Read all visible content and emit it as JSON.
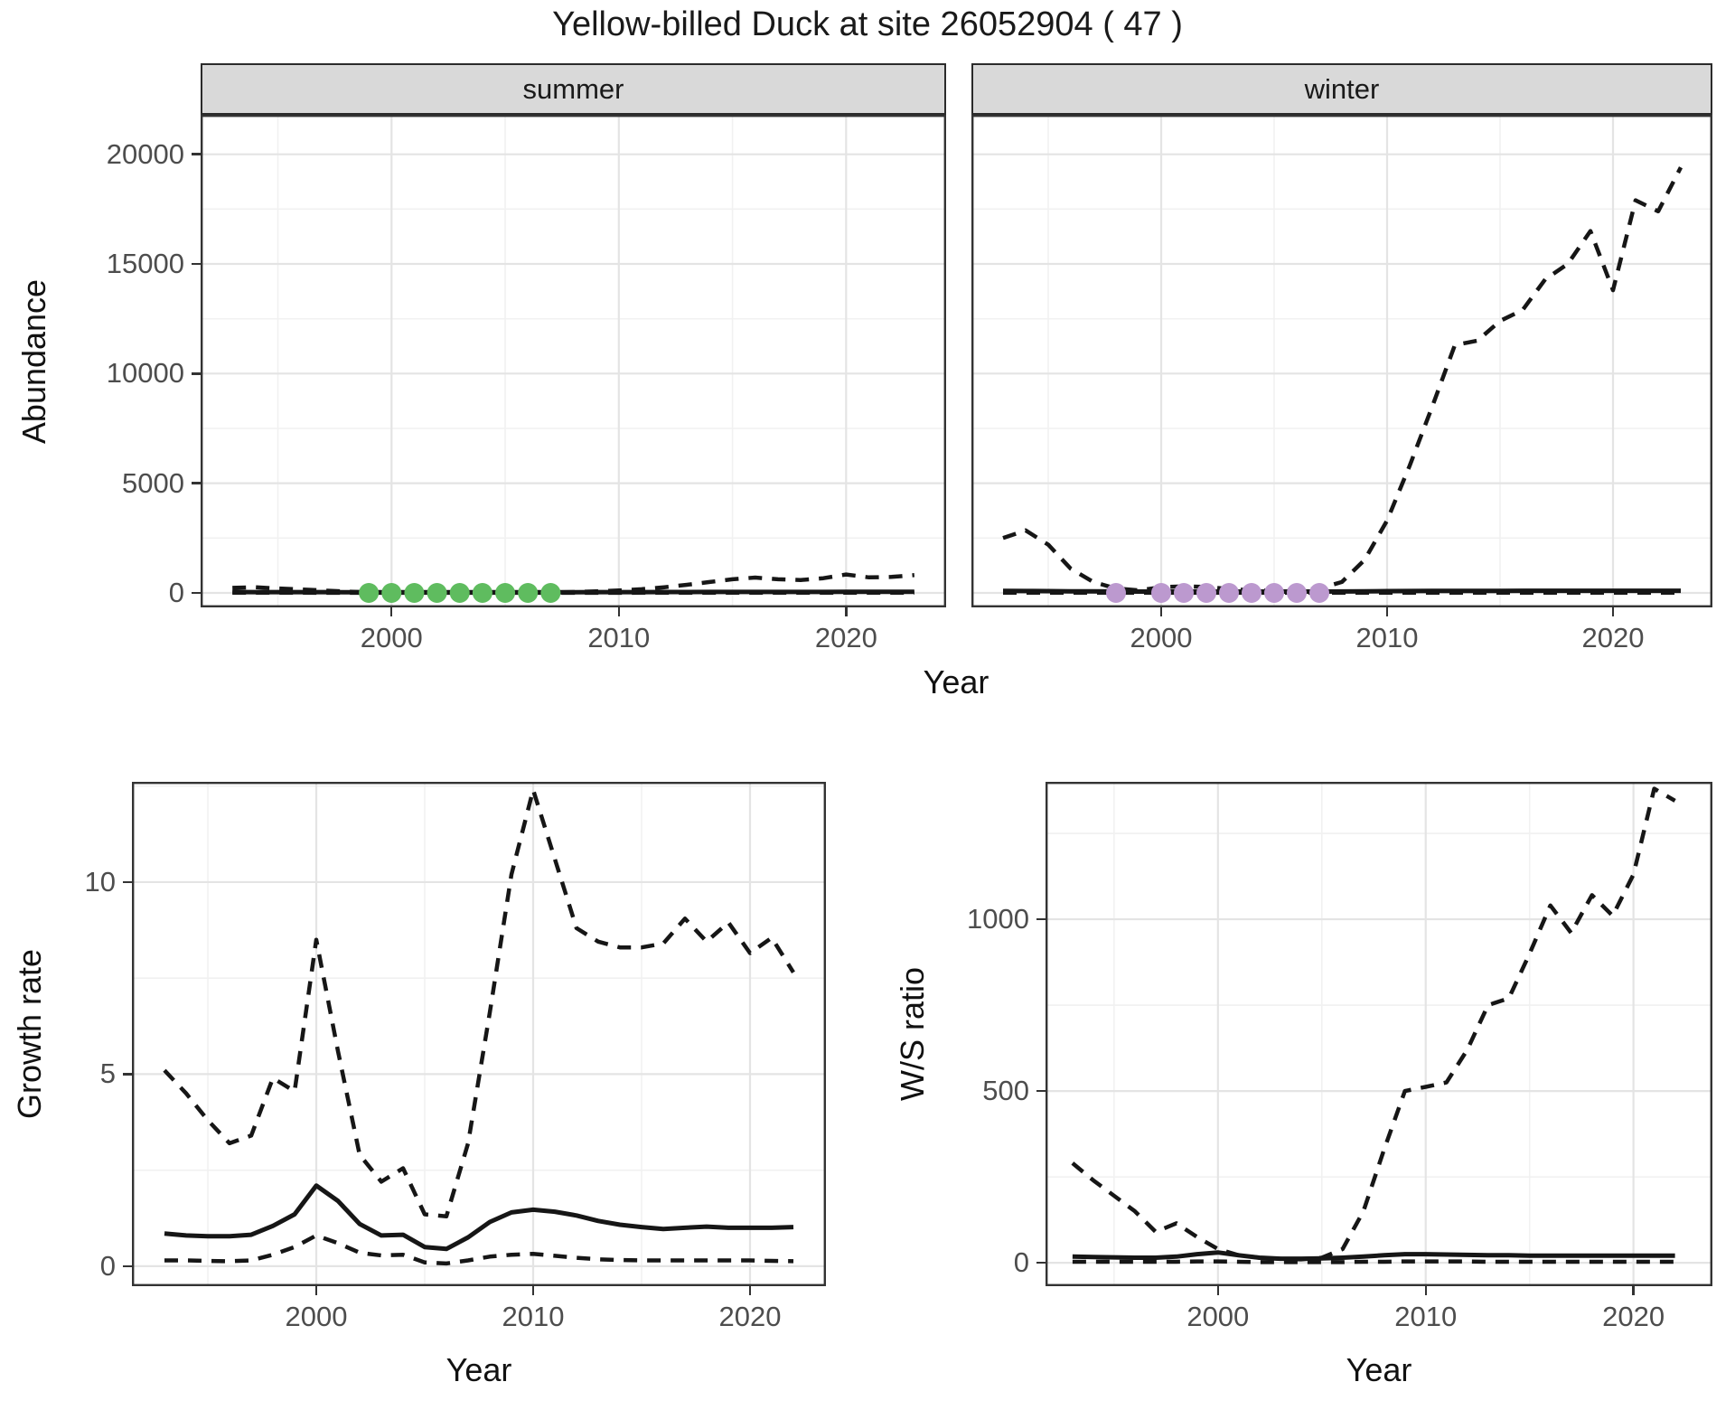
{
  "title": "Yellow-billed Duck at site 26052904 ( 47 )",
  "axes": {
    "x": "Year",
    "top_y": "Abundance",
    "growth_y": "Growth rate",
    "ws_y": "W/S ratio"
  },
  "colors": {
    "line": "#161616",
    "dot_summer": "#5FBC5F",
    "dot_winter": "#BC99CF",
    "grid_major": "#e4e4e4",
    "grid_minor": "#f1f1f1",
    "panel_border": "#333333",
    "strip_bg": "#d9d9d9",
    "tick_text": "#4d4d4d"
  },
  "chart_data": [
    {
      "id": "summer",
      "type": "line",
      "strip": "summer",
      "x_years": [
        1993,
        1994,
        1995,
        1996,
        1997,
        1998,
        1999,
        2000,
        2001,
        2002,
        2003,
        2004,
        2005,
        2006,
        2007,
        2008,
        2009,
        2010,
        2011,
        2012,
        2013,
        2014,
        2015,
        2016,
        2017,
        2018,
        2019,
        2020,
        2021,
        2022,
        2023
      ],
      "xlim": [
        1991.6,
        2024.4
      ],
      "ylim": [
        -660,
        21800
      ],
      "xticks": [
        2000,
        2010,
        2020
      ],
      "xtick_labels": [
        "2000",
        "2010",
        "2020"
      ],
      "xminor": [
        1995,
        2005,
        2015
      ],
      "yticks": [
        0,
        5000,
        10000,
        15000,
        20000
      ],
      "ytick_labels": [
        "0",
        "5000",
        "10000",
        "15000",
        "20000"
      ],
      "yminor": [
        2500,
        7500,
        12500,
        17500
      ],
      "series": [
        {
          "name": "upper-ci",
          "dashed": true,
          "values": [
            230,
            260,
            200,
            160,
            110,
            60,
            25,
            20,
            18,
            18,
            18,
            18,
            18,
            18,
            22,
            40,
            70,
            110,
            170,
            260,
            370,
            500,
            620,
            700,
            620,
            590,
            670,
            840,
            710,
            730,
            810
          ]
        },
        {
          "name": "median",
          "dashed": false,
          "values": [
            40,
            38,
            36,
            35,
            35,
            34,
            33,
            33,
            33,
            33,
            33,
            33,
            33,
            33,
            33,
            34,
            35,
            36,
            38,
            40,
            42,
            44,
            45,
            46,
            46,
            46,
            46,
            47,
            47,
            47,
            47
          ]
        },
        {
          "name": "lower-ci",
          "dashed": true,
          "values": [
            8,
            7,
            6,
            6,
            5,
            5,
            5,
            5,
            5,
            5,
            5,
            5,
            5,
            5,
            5,
            5,
            5,
            5,
            6,
            6,
            6,
            6,
            6,
            6,
            6,
            6,
            6,
            6,
            6,
            6,
            6
          ]
        }
      ],
      "points": {
        "name": "observed-count-dots",
        "color": "#5FBC5F",
        "years": [
          1999,
          2000,
          2001,
          2002,
          2003,
          2004,
          2005,
          2006,
          2007
        ],
        "values": [
          0,
          0,
          0,
          0,
          0,
          0,
          0,
          0,
          0
        ]
      }
    },
    {
      "id": "winter",
      "type": "line",
      "strip": "winter",
      "x_years": [
        1993,
        1994,
        1995,
        1996,
        1997,
        1998,
        1999,
        2000,
        2001,
        2002,
        2003,
        2004,
        2005,
        2006,
        2007,
        2008,
        2009,
        2010,
        2011,
        2012,
        2013,
        2014,
        2015,
        2016,
        2017,
        2018,
        2019,
        2020,
        2021,
        2022,
        2023
      ],
      "xlim": [
        1991.6,
        2024.4
      ],
      "ylim": [
        -660,
        21800
      ],
      "xticks": [
        2000,
        2010,
        2020
      ],
      "xtick_labels": [
        "2000",
        "2010",
        "2020"
      ],
      "xminor": [
        1995,
        2005,
        2015
      ],
      "yticks": [
        0,
        5000,
        10000,
        15000,
        20000
      ],
      "ytick_labels": [
        "0",
        "5000",
        "10000",
        "15000",
        "20000"
      ],
      "yminor": [
        2500,
        7500,
        12500,
        17500
      ],
      "series": [
        {
          "name": "upper-ci",
          "dashed": true,
          "values": [
            2500,
            2850,
            2200,
            1100,
            500,
            200,
            120,
            260,
            300,
            270,
            180,
            120,
            100,
            130,
            200,
            500,
            1500,
            3300,
            5800,
            8500,
            11300,
            11500,
            12400,
            12900,
            14300,
            15000,
            16500,
            13800,
            17900,
            17400,
            19400
          ]
        },
        {
          "name": "median",
          "dashed": false,
          "values": [
            90,
            85,
            80,
            75,
            70,
            65,
            60,
            60,
            60,
            60,
            60,
            60,
            60,
            60,
            60,
            65,
            70,
            80,
            85,
            90,
            95,
            95,
            95,
            100,
            100,
            100,
            100,
            100,
            100,
            100,
            100
          ]
        },
        {
          "name": "lower-ci",
          "dashed": true,
          "values": [
            12,
            11,
            10,
            10,
            10,
            10,
            10,
            10,
            10,
            10,
            10,
            10,
            10,
            10,
            10,
            10,
            10,
            10,
            11,
            11,
            11,
            11,
            11,
            11,
            11,
            11,
            11,
            11,
            11,
            11,
            11
          ]
        }
      ],
      "points": {
        "name": "observed-count-dots",
        "color": "#BC99CF",
        "years": [
          1998,
          2000,
          2001,
          2002,
          2003,
          2004,
          2005,
          2006,
          2007
        ],
        "values": [
          0,
          0,
          0,
          0,
          0,
          0,
          0,
          0,
          0
        ]
      }
    },
    {
      "id": "growth",
      "type": "line",
      "strip": "",
      "x_years": [
        1993,
        1994,
        1995,
        1996,
        1997,
        1998,
        1999,
        2000,
        2001,
        2002,
        2003,
        2004,
        2005,
        2006,
        2007,
        2008,
        2009,
        2010,
        2011,
        2012,
        2013,
        2014,
        2015,
        2016,
        2017,
        2018,
        2019,
        2020,
        2021,
        2022
      ],
      "xlim": [
        1991.5,
        2023.5
      ],
      "ylim": [
        -0.52,
        12.61
      ],
      "xticks": [
        2000,
        2010,
        2020
      ],
      "xtick_labels": [
        "2000",
        "2010",
        "2020"
      ],
      "xminor": [
        1995,
        2005,
        2015
      ],
      "yticks": [
        0,
        5,
        10
      ],
      "ytick_labels": [
        "0",
        "5",
        "10"
      ],
      "yminor": [
        2.5,
        7.5,
        12.5
      ],
      "series": [
        {
          "name": "upper-ci",
          "dashed": true,
          "values": [
            5.1,
            4.5,
            3.8,
            3.2,
            3.4,
            4.9,
            4.55,
            8.5,
            5.6,
            2.9,
            2.2,
            2.55,
            1.35,
            1.3,
            3.2,
            6.6,
            10.2,
            12.4,
            10.6,
            8.8,
            8.45,
            8.3,
            8.3,
            8.4,
            9.05,
            8.45,
            8.95,
            8.15,
            8.55,
            7.65
          ]
        },
        {
          "name": "median",
          "dashed": false,
          "values": [
            0.85,
            0.8,
            0.78,
            0.78,
            0.82,
            1.05,
            1.35,
            2.1,
            1.7,
            1.1,
            0.8,
            0.82,
            0.5,
            0.45,
            0.75,
            1.15,
            1.4,
            1.47,
            1.42,
            1.32,
            1.18,
            1.08,
            1.02,
            0.97,
            1.0,
            1.03,
            1.0,
            1.0,
            1.0,
            1.02
          ]
        },
        {
          "name": "lower-ci",
          "dashed": true,
          "values": [
            0.15,
            0.15,
            0.14,
            0.13,
            0.15,
            0.3,
            0.5,
            0.8,
            0.6,
            0.35,
            0.28,
            0.3,
            0.1,
            0.07,
            0.15,
            0.25,
            0.3,
            0.32,
            0.27,
            0.22,
            0.18,
            0.16,
            0.15,
            0.15,
            0.15,
            0.15,
            0.15,
            0.15,
            0.14,
            0.13
          ]
        }
      ],
      "points": null
    },
    {
      "id": "ws",
      "type": "line",
      "strip": "",
      "x_years": [
        1993,
        1994,
        1995,
        1996,
        1997,
        1998,
        1999,
        2000,
        2001,
        2002,
        2003,
        2004,
        2005,
        2006,
        2007,
        2008,
        2009,
        2010,
        2011,
        2012,
        2013,
        2014,
        2015,
        2016,
        2017,
        2018,
        2019,
        2020,
        2021,
        2022
      ],
      "xlim": [
        1991.7,
        2023.8
      ],
      "ylim": [
        -68,
        1400
      ],
      "xticks": [
        2000,
        2010,
        2020
      ],
      "xtick_labels": [
        "2000",
        "2010",
        "2020"
      ],
      "xminor": [
        1995,
        2005,
        2015
      ],
      "yticks": [
        0,
        500,
        1000
      ],
      "ytick_labels": [
        "0",
        "500",
        "1000"
      ],
      "yminor": [
        250,
        750,
        1250
      ],
      "series": [
        {
          "name": "upper-ci",
          "dashed": true,
          "values": [
            290,
            240,
            195,
            150,
            90,
            115,
            75,
            40,
            22,
            15,
            12,
            10,
            15,
            40,
            150,
            330,
            500,
            512,
            525,
            620,
            750,
            770,
            900,
            1040,
            960,
            1070,
            1010,
            1130,
            1380,
            1345
          ]
        },
        {
          "name": "median",
          "dashed": false,
          "values": [
            18,
            17,
            16,
            15,
            15,
            18,
            25,
            30,
            22,
            15,
            12,
            12,
            13,
            15,
            18,
            22,
            25,
            25,
            24,
            23,
            22,
            22,
            21,
            21,
            21,
            21,
            21,
            21,
            21,
            21
          ]
        },
        {
          "name": "lower-ci",
          "dashed": true,
          "values": [
            3,
            3,
            3,
            3,
            3,
            3,
            4,
            4,
            3,
            2,
            2,
            2,
            2,
            2,
            3,
            3,
            4,
            4,
            4,
            4,
            3,
            3,
            3,
            3,
            3,
            3,
            3,
            3,
            3,
            3
          ]
        }
      ],
      "points": null
    }
  ]
}
